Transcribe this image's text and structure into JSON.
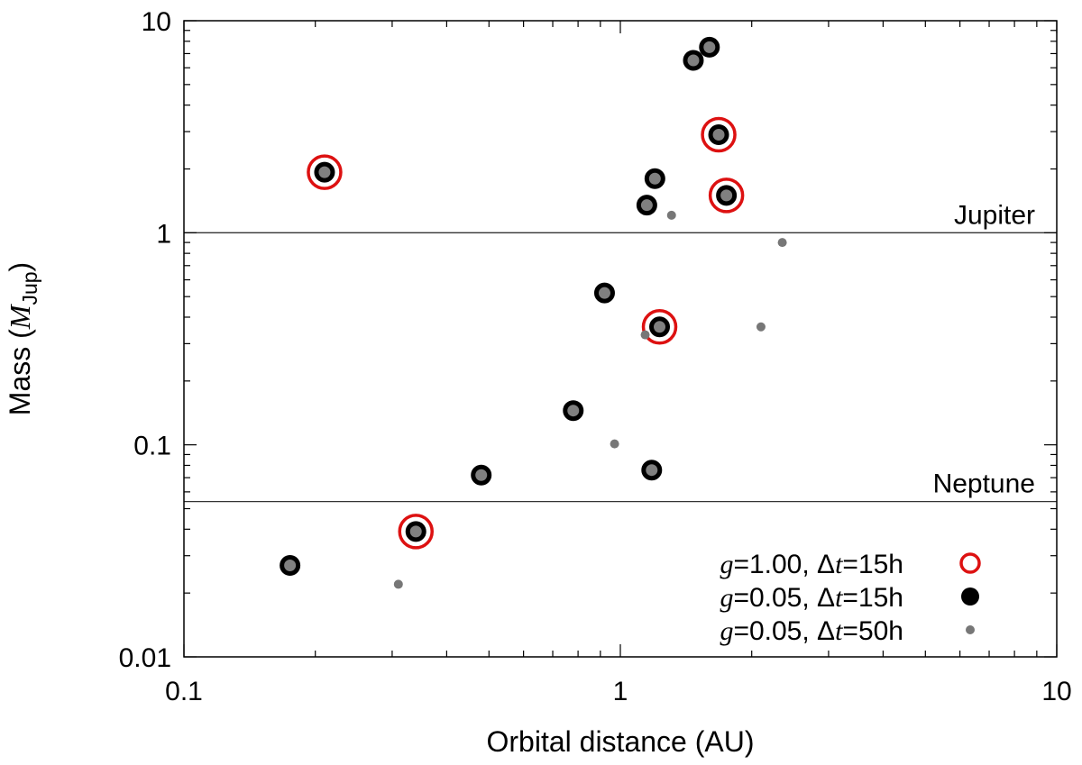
{
  "chart_data": {
    "type": "scatter",
    "title": "",
    "xlabel": "Orbital distance (AU)",
    "ylabel": {
      "prefix": "Mass (",
      "symbol": "M",
      "subscript": "Jup",
      "suffix": ")"
    },
    "xscale": "log",
    "yscale": "log",
    "xlim": [
      0.1,
      10
    ],
    "ylim": [
      0.01,
      10
    ],
    "x_tick_labels": [
      "0.1",
      "1",
      "10"
    ],
    "y_tick_labels": [
      "0.01",
      "0.1",
      "1",
      "10"
    ],
    "reference_lines": [
      {
        "label": "Jupiter",
        "y": 1.0
      },
      {
        "label": "Neptune",
        "y": 0.054
      }
    ],
    "legend_position": "bottom-right",
    "series": [
      {
        "name": {
          "var": "g",
          "value": "=1.00, ",
          "dvar": "Δt",
          "dval": "=15h"
        },
        "marker": "open-circle",
        "color": "#dd1111",
        "points": [
          {
            "x": 0.21,
            "y": 1.93
          },
          {
            "x": 0.34,
            "y": 0.039
          },
          {
            "x": 1.23,
            "y": 0.36
          },
          {
            "x": 1.68,
            "y": 2.9
          },
          {
            "x": 1.75,
            "y": 1.5
          }
        ]
      },
      {
        "name": {
          "var": "g",
          "value": "=0.05, ",
          "dvar": "Δt",
          "dval": "=15h"
        },
        "marker": "filled-circle",
        "color": "#000000",
        "points": [
          {
            "x": 0.175,
            "y": 0.027
          },
          {
            "x": 0.21,
            "y": 1.93
          },
          {
            "x": 0.34,
            "y": 0.039
          },
          {
            "x": 0.48,
            "y": 0.072
          },
          {
            "x": 0.78,
            "y": 0.145
          },
          {
            "x": 0.92,
            "y": 0.52
          },
          {
            "x": 1.15,
            "y": 1.35
          },
          {
            "x": 1.18,
            "y": 0.076
          },
          {
            "x": 1.2,
            "y": 1.8
          },
          {
            "x": 1.23,
            "y": 0.36
          },
          {
            "x": 1.47,
            "y": 6.5
          },
          {
            "x": 1.6,
            "y": 7.5
          },
          {
            "x": 1.68,
            "y": 2.9
          },
          {
            "x": 1.75,
            "y": 1.5
          }
        ]
      },
      {
        "name": {
          "var": "g",
          "value": "=0.05, ",
          "dvar": "Δt",
          "dval": "=50h"
        },
        "marker": "small-dot",
        "color": "#777777",
        "points": [
          {
            "x": 0.31,
            "y": 0.022
          },
          {
            "x": 0.97,
            "y": 0.101
          },
          {
            "x": 1.14,
            "y": 0.33
          },
          {
            "x": 1.31,
            "y": 1.21
          },
          {
            "x": 2.1,
            "y": 0.36
          },
          {
            "x": 2.35,
            "y": 0.9
          }
        ]
      }
    ]
  }
}
